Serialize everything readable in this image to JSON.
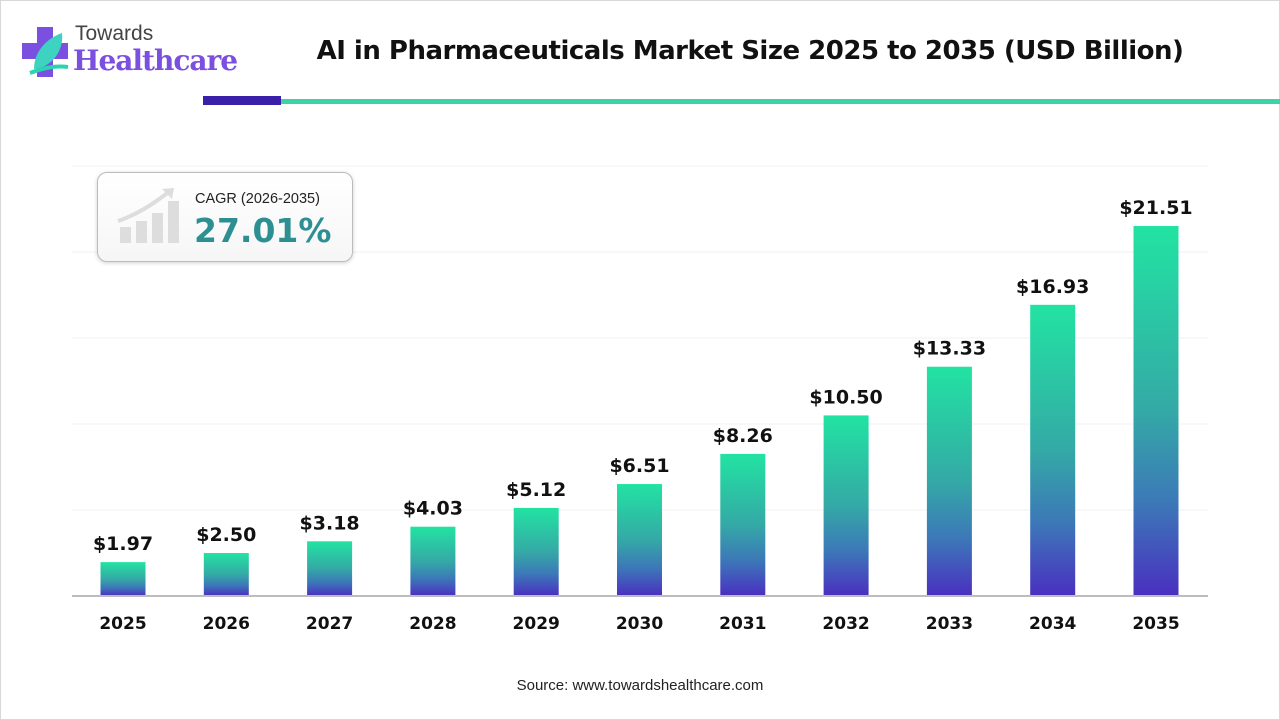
{
  "brand": {
    "line1": "Towards",
    "line2": "Healthcare",
    "colors": {
      "purple": "#7b4fe0",
      "teal": "#3dd3a6"
    }
  },
  "header": {
    "title": "AI in Pharmaceuticals Market Size 2025 to 2035 (USD Billion)",
    "accent_dark": "#3a1fa8",
    "accent_light": "#3dd3a6"
  },
  "cagr": {
    "label": "CAGR (2026-2035)",
    "value": "27.01%",
    "icon": "growth-chart-icon",
    "color": "#2e8f92"
  },
  "source": "Source: www.towardshealthcare.com",
  "chart_data": {
    "type": "bar",
    "title": "AI in Pharmaceuticals Market Size 2025 to 2035 (USD Billion)",
    "categories": [
      "2025",
      "2026",
      "2027",
      "2028",
      "2029",
      "2030",
      "2031",
      "2032",
      "2033",
      "2034",
      "2035"
    ],
    "values": [
      1.97,
      2.5,
      3.18,
      4.03,
      5.12,
      6.51,
      8.26,
      10.5,
      13.33,
      16.93,
      21.51
    ],
    "data_labels": [
      "$1.97",
      "$2.50",
      "$3.18",
      "$4.03",
      "$5.12",
      "$6.51",
      "$8.26",
      "$10.50",
      "$13.33",
      "$16.93",
      "$21.51"
    ],
    "xlabel": "",
    "ylabel": "",
    "ylim": [
      0,
      25
    ],
    "grid": true,
    "gridlines": [
      5,
      10,
      15,
      20,
      25
    ],
    "bar_gradient": {
      "top": "#22e3a2",
      "middle": "#34a9a6",
      "bottom": "#4a2fc0"
    }
  }
}
